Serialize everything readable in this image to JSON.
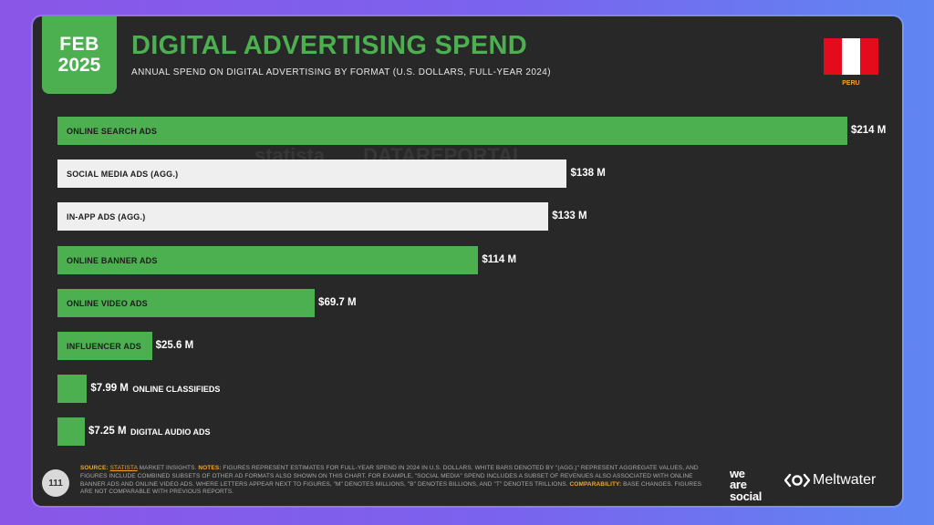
{
  "header": {
    "month": "FEB",
    "year": "2025",
    "title": "DIGITAL ADVERTISING SPEND",
    "subtitle": "ANNUAL SPEND ON DIGITAL ADVERTISING BY FORMAT (U.S. DOLLARS, FULL-YEAR 2024)"
  },
  "country": {
    "label": "PERU",
    "flag_colors": [
      "#e30b1c",
      "#ffffff",
      "#e30b1c"
    ]
  },
  "watermark": [
    "statista",
    "DATAREPORTAL"
  ],
  "colors": {
    "green": "#4caf50",
    "white_bar": "#efefef",
    "background": "#282828",
    "accent": "#f5a623"
  },
  "chart_data": {
    "type": "bar",
    "orientation": "horizontal",
    "categories": [
      "ONLINE SEARCH ADS",
      "SOCIAL MEDIA ADS (AGG.)",
      "IN-APP ADS (AGG.)",
      "ONLINE BANNER ADS",
      "ONLINE VIDEO ADS",
      "INFLUENCER ADS",
      "ONLINE CLASSIFIEDS",
      "DIGITAL AUDIO ADS"
    ],
    "values": [
      214,
      138,
      133,
      114,
      69.7,
      25.6,
      7.99,
      7.25
    ],
    "value_labels": [
      "$214 M",
      "$138 M",
      "$133 M",
      "$114 M",
      "$69.7 M",
      "$25.6 M",
      "$7.99 M",
      "$7.25 M"
    ],
    "aggregate": [
      false,
      true,
      true,
      false,
      false,
      false,
      false,
      false
    ],
    "unit": "U.S. dollars (millions)",
    "xlim": [
      0,
      214
    ]
  },
  "footer": {
    "page_number": "111",
    "source_label": "SOURCE:",
    "source_link": "STATISTA",
    "source_text": "MARKET INSIGHTS.",
    "notes_label": "NOTES:",
    "notes_text": "FIGURES REPRESENT ESTIMATES FOR FULL-YEAR SPEND IN 2024 IN U.S. DOLLARS. WHITE BARS DENOTED BY \"(AGG.)\" REPRESENT AGGREGATE VALUES, AND FIGURES INCLUDE COMBINED SUBSETS OF OTHER AD FORMATS ALSO SHOWN ON THIS CHART. FOR EXAMPLE, \"SOCIAL MEDIA\" SPEND INCLUDES A SUBSET OF REVENUES ALSO ASSOCIATED WITH ONLINE BANNER ADS AND ONLINE VIDEO ADS. WHERE LETTERS APPEAR NEXT TO FIGURES, \"M\" DENOTES MILLIONS, \"B\" DENOTES BILLIONS, AND \"T\" DENOTES TRILLIONS.",
    "comparability_label": "COMPARABILITY:",
    "comparability_text": "BASE CHANGES. FIGURES ARE NOT COMPARABLE WITH PREVIOUS REPORTS.",
    "logo_we_are_social": [
      "we",
      "are",
      "social"
    ],
    "logo_meltwater": "Meltwater"
  }
}
